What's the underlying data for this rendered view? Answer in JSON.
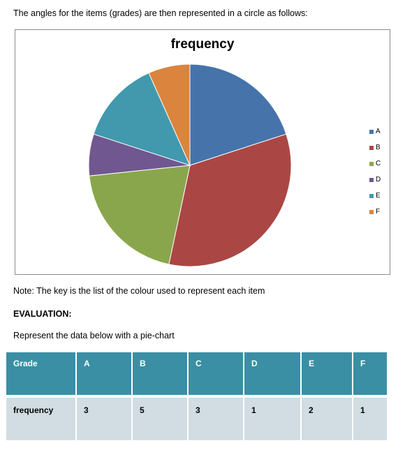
{
  "intro_text": "The angles for the items (grades) are then represented in a circle as follows:",
  "chart_data": {
    "type": "pie",
    "title": "frequency",
    "categories": [
      "A",
      "B",
      "C",
      "D",
      "E",
      "F"
    ],
    "values": [
      3,
      5,
      3,
      1,
      2,
      1
    ],
    "colors": [
      "#4674aa",
      "#aa4744",
      "#8aa64c",
      "#71578f",
      "#4299ae",
      "#db843d"
    ],
    "legend_position": "right"
  },
  "note_text": "Note: The key is the list of the colour used to represent each item",
  "evaluation_heading": "EVALUATION:",
  "instruction_text": "Represent the data below with a pie-chart",
  "table": {
    "header": [
      "Grade",
      "A",
      "B",
      "C",
      "D",
      "E",
      "F"
    ],
    "row": [
      "frequency",
      "3",
      "5",
      "3",
      "1",
      "2",
      "1"
    ]
  }
}
